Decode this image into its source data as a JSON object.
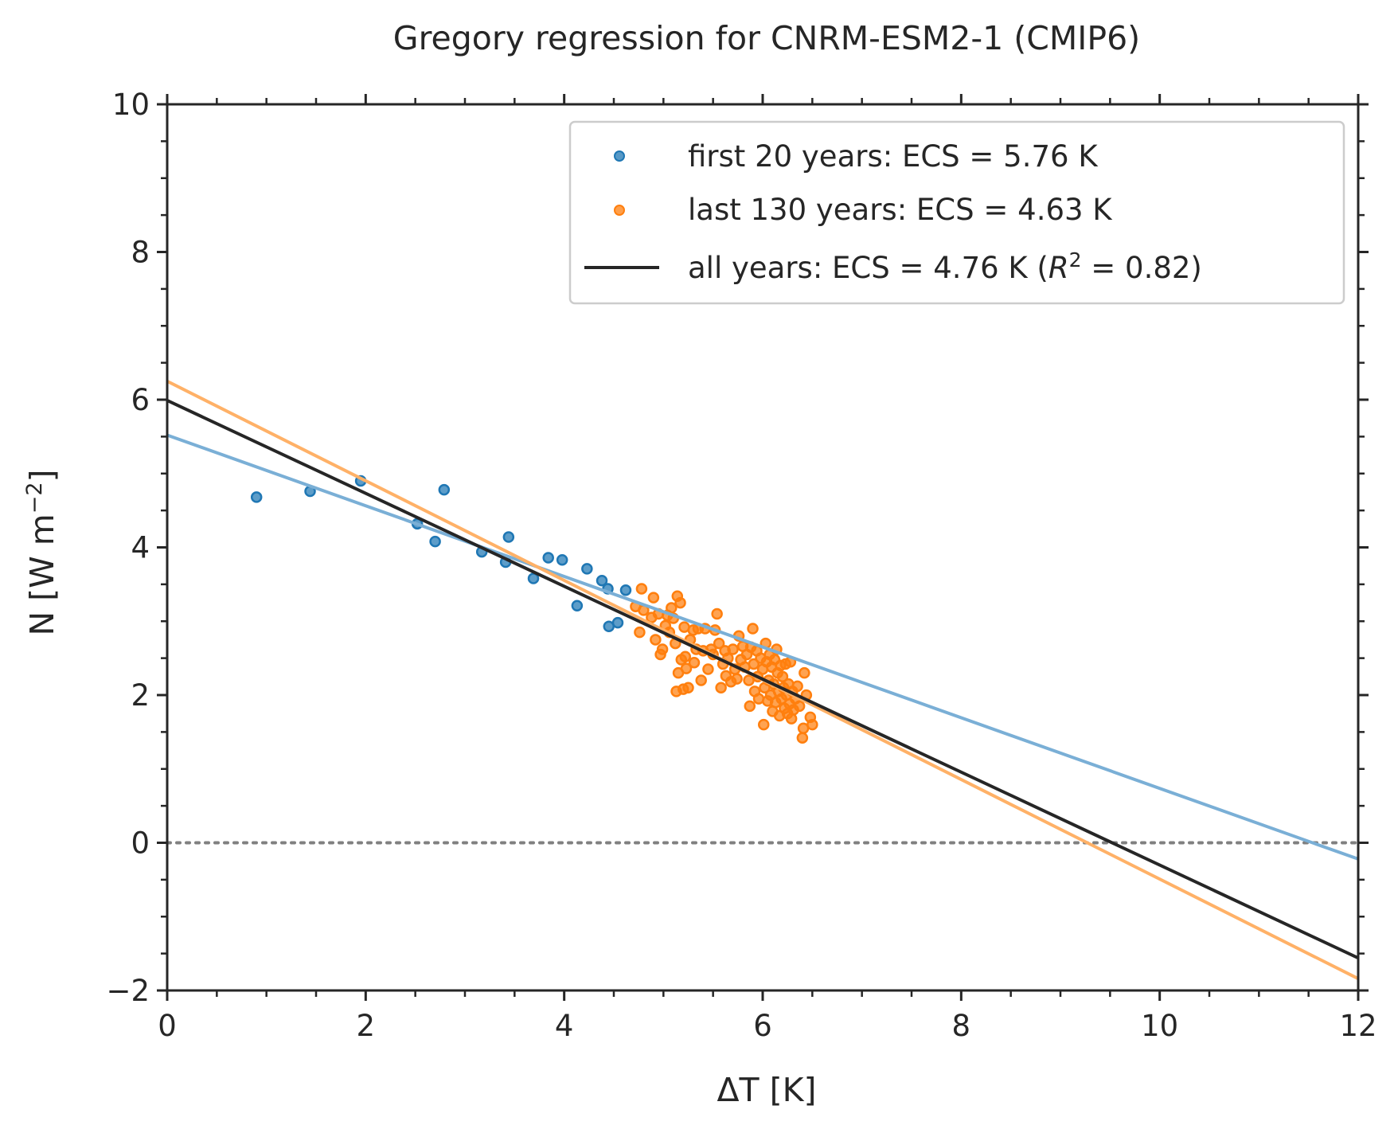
{
  "chart_data": {
    "type": "scatter",
    "title": "Gregory regression for CNRM-ESM2-1 (CMIP6)",
    "xlabel": "ΔT [K]",
    "ylabel": "N [W m",
    "ylabel_exponent": "−2",
    "ylabel_close": "]",
    "xlim": [
      0,
      12
    ],
    "ylim": [
      -2,
      10
    ],
    "x_ticks": [
      0,
      2,
      4,
      6,
      8,
      10,
      12
    ],
    "x_tick_labels": [
      "0",
      "2",
      "4",
      "6",
      "8",
      "10",
      "12"
    ],
    "y_ticks": [
      -2,
      0,
      2,
      4,
      6,
      8,
      10
    ],
    "y_tick_labels": [
      "−2",
      "0",
      "2",
      "4",
      "6",
      "8",
      "10"
    ],
    "grid": false,
    "zero_line": {
      "y": 0,
      "style": "dotted",
      "color": "#808080"
    },
    "legend_position": "upper right",
    "series": [
      {
        "name": "first 20 years: ECS = 5.76 K",
        "kind": "scatter",
        "color": "#1f77b4",
        "points": [
          [
            0.9,
            4.68
          ],
          [
            1.44,
            4.76
          ],
          [
            1.95,
            4.9
          ],
          [
            2.52,
            4.32
          ],
          [
            2.7,
            4.08
          ],
          [
            2.79,
            4.78
          ],
          [
            3.17,
            3.94
          ],
          [
            3.41,
            3.8
          ],
          [
            3.44,
            4.14
          ],
          [
            3.69,
            3.58
          ],
          [
            3.84,
            3.86
          ],
          [
            3.98,
            3.83
          ],
          [
            4.13,
            3.21
          ],
          [
            4.23,
            3.71
          ],
          [
            4.38,
            3.55
          ],
          [
            4.44,
            3.44
          ],
          [
            4.45,
            2.93
          ],
          [
            4.54,
            2.98
          ],
          [
            4.62,
            3.42
          ]
        ]
      },
      {
        "name": "last 130 years: ECS = 4.63 K",
        "kind": "scatter",
        "color": "#ff7f0e",
        "points": [
          [
            4.72,
            3.2
          ],
          [
            4.76,
            2.85
          ],
          [
            4.78,
            3.44
          ],
          [
            4.8,
            3.15
          ],
          [
            4.88,
            3.05
          ],
          [
            4.9,
            3.32
          ],
          [
            4.92,
            2.75
          ],
          [
            4.95,
            3.1
          ],
          [
            4.97,
            2.55
          ],
          [
            4.99,
            2.62
          ],
          [
            5.02,
            2.94
          ],
          [
            5.04,
            3.08
          ],
          [
            5.06,
            2.85
          ],
          [
            5.08,
            3.18
          ],
          [
            5.1,
            3.04
          ],
          [
            5.12,
            2.7
          ],
          [
            5.13,
            2.05
          ],
          [
            5.14,
            3.34
          ],
          [
            5.15,
            2.3
          ],
          [
            5.17,
            3.25
          ],
          [
            5.18,
            2.48
          ],
          [
            5.2,
            2.08
          ],
          [
            5.21,
            2.92
          ],
          [
            5.22,
            2.52
          ],
          [
            5.23,
            2.36
          ],
          [
            5.25,
            2.1
          ],
          [
            5.27,
            2.75
          ],
          [
            5.3,
            2.88
          ],
          [
            5.31,
            2.44
          ],
          [
            5.33,
            2.62
          ],
          [
            5.35,
            2.9
          ],
          [
            5.38,
            2.2
          ],
          [
            5.4,
            2.6
          ],
          [
            5.42,
            2.9
          ],
          [
            5.45,
            2.35
          ],
          [
            5.48,
            2.62
          ],
          [
            5.5,
            2.55
          ],
          [
            5.52,
            2.88
          ],
          [
            5.54,
            3.1
          ],
          [
            5.56,
            2.7
          ],
          [
            5.58,
            2.1
          ],
          [
            5.6,
            2.42
          ],
          [
            5.62,
            2.6
          ],
          [
            5.63,
            2.26
          ],
          [
            5.65,
            2.5
          ],
          [
            5.68,
            2.18
          ],
          [
            5.7,
            2.62
          ],
          [
            5.72,
            2.35
          ],
          [
            5.74,
            2.22
          ],
          [
            5.76,
            2.8
          ],
          [
            5.78,
            2.48
          ],
          [
            5.8,
            2.66
          ],
          [
            5.82,
            2.38
          ],
          [
            5.84,
            2.55
          ],
          [
            5.86,
            2.2
          ],
          [
            5.87,
            1.85
          ],
          [
            5.88,
            2.65
          ],
          [
            5.9,
            2.9
          ],
          [
            5.91,
            2.42
          ],
          [
            5.92,
            2.05
          ],
          [
            5.94,
            2.6
          ],
          [
            5.95,
            2.25
          ],
          [
            5.96,
            1.95
          ],
          [
            5.98,
            2.5
          ],
          [
            6.0,
            2.35
          ],
          [
            6.01,
            1.6
          ],
          [
            6.02,
            2.1
          ],
          [
            6.03,
            2.7
          ],
          [
            6.04,
            2.45
          ],
          [
            6.05,
            1.92
          ],
          [
            6.06,
            2.2
          ],
          [
            6.07,
            2.55
          ],
          [
            6.08,
            2.0
          ],
          [
            6.09,
            2.38
          ],
          [
            6.1,
            1.78
          ],
          [
            6.11,
            2.15
          ],
          [
            6.12,
            2.48
          ],
          [
            6.13,
            1.9
          ],
          [
            6.14,
            2.62
          ],
          [
            6.15,
            2.3
          ],
          [
            6.16,
            2.05
          ],
          [
            6.17,
            1.72
          ],
          [
            6.18,
            2.4
          ],
          [
            6.19,
            1.95
          ],
          [
            6.2,
            2.25
          ],
          [
            6.21,
            2.1
          ],
          [
            6.22,
            1.82
          ],
          [
            6.23,
            2.42
          ],
          [
            6.24,
            2.0
          ],
          [
            6.25,
            1.75
          ],
          [
            6.26,
            2.15
          ],
          [
            6.27,
            1.88
          ],
          [
            6.28,
            2.45
          ],
          [
            6.29,
            1.68
          ],
          [
            6.3,
            2.05
          ],
          [
            6.31,
            1.8
          ],
          [
            6.33,
            1.95
          ],
          [
            6.35,
            2.12
          ],
          [
            6.37,
            1.85
          ],
          [
            6.4,
            1.42
          ],
          [
            6.41,
            1.55
          ],
          [
            6.42,
            2.3
          ],
          [
            6.44,
            2.0
          ],
          [
            6.48,
            1.7
          ],
          [
            6.5,
            1.6
          ]
        ]
      }
    ],
    "fit_lines": [
      {
        "name": "first 20 years fit",
        "color": "#7aafd6",
        "x": [
          0,
          12
        ],
        "y": [
          5.52,
          -0.22
        ]
      },
      {
        "name": "last 130 years fit",
        "color": "#ffb167",
        "x": [
          0,
          12
        ],
        "y": [
          6.25,
          -1.84
        ]
      },
      {
        "name": "all years: ECS = 4.76 K",
        "color": "#262626",
        "x": [
          0,
          12
        ],
        "y": [
          5.99,
          -1.56
        ]
      }
    ],
    "legend": {
      "entries": [
        {
          "label": "first 20 years: ECS = 5.76 K",
          "marker": "dot",
          "color": "#1f77b4"
        },
        {
          "label": "last 130 years: ECS = 4.63 K",
          "marker": "dot",
          "color": "#ff7f0e"
        },
        {
          "label_prefix": "all years: ECS = 4.76 K (",
          "label_italic": "R",
          "label_sup": "2",
          "label_suffix": " = 0.82)",
          "marker": "line",
          "color": "#262626"
        }
      ]
    }
  }
}
